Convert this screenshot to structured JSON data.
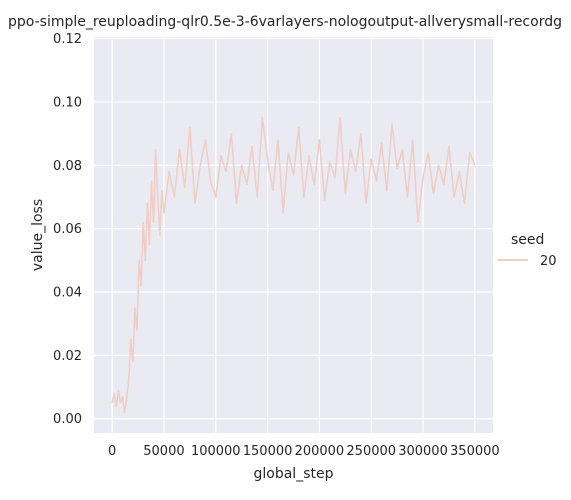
{
  "chart_data": {
    "type": "line",
    "title": "ppo-simple_reuploading-qlr0.5e-3-6varlayers-nologoutput-allverysmall-recordg",
    "xlabel": "global_step",
    "ylabel": "value_loss",
    "xlim": [
      -17500,
      367500
    ],
    "ylim": [
      -0.0045,
      0.1205
    ],
    "xticks": [
      0,
      50000,
      100000,
      150000,
      200000,
      250000,
      300000,
      350000
    ],
    "yticks": [
      0.0,
      0.02,
      0.04,
      0.06,
      0.08,
      0.1,
      0.12
    ],
    "ytick_labels": [
      "0.00",
      "0.02",
      "0.04",
      "0.06",
      "0.08",
      "0.10",
      "0.12"
    ],
    "grid": true,
    "background": "#eaeaf2",
    "legend": {
      "title": "seed",
      "placement": "right",
      "entries": [
        "20"
      ]
    },
    "series": [
      {
        "name": "20",
        "color": "#efcfc5",
        "x": [
          0,
          2000,
          4000,
          6000,
          8000,
          10000,
          12000,
          14000,
          16000,
          18000,
          20000,
          22000,
          24000,
          26000,
          28000,
          30000,
          32000,
          34000,
          36000,
          38000,
          40000,
          42000,
          44000,
          46000,
          48000,
          50000,
          55000,
          60000,
          65000,
          70000,
          75000,
          80000,
          85000,
          90000,
          95000,
          100000,
          105000,
          110000,
          115000,
          120000,
          125000,
          130000,
          135000,
          140000,
          145000,
          150000,
          155000,
          160000,
          165000,
          170000,
          175000,
          180000,
          185000,
          190000,
          195000,
          200000,
          205000,
          210000,
          215000,
          220000,
          225000,
          230000,
          235000,
          240000,
          245000,
          250000,
          255000,
          260000,
          265000,
          270000,
          275000,
          280000,
          285000,
          290000,
          295000,
          300000,
          305000,
          310000,
          315000,
          320000,
          325000,
          330000,
          335000,
          340000,
          345000,
          350000
        ],
        "y": [
          0.005,
          0.008,
          0.004,
          0.009,
          0.005,
          0.007,
          0.002,
          0.006,
          0.012,
          0.025,
          0.018,
          0.035,
          0.028,
          0.05,
          0.042,
          0.062,
          0.05,
          0.068,
          0.055,
          0.075,
          0.062,
          0.085,
          0.07,
          0.058,
          0.072,
          0.065,
          0.078,
          0.07,
          0.085,
          0.073,
          0.092,
          0.068,
          0.08,
          0.088,
          0.075,
          0.07,
          0.083,
          0.078,
          0.09,
          0.068,
          0.08,
          0.074,
          0.086,
          0.07,
          0.095,
          0.082,
          0.072,
          0.088,
          0.065,
          0.084,
          0.077,
          0.092,
          0.07,
          0.083,
          0.074,
          0.088,
          0.069,
          0.081,
          0.076,
          0.095,
          0.071,
          0.085,
          0.078,
          0.09,
          0.068,
          0.082,
          0.075,
          0.087,
          0.072,
          0.093,
          0.079,
          0.085,
          0.07,
          0.088,
          0.062,
          0.076,
          0.084,
          0.071,
          0.08,
          0.074,
          0.086,
          0.07,
          0.078,
          0.068,
          0.084,
          0.08
        ]
      }
    ]
  }
}
